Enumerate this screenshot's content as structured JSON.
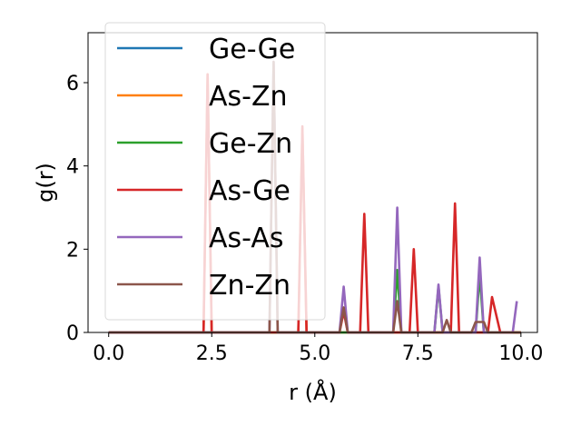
{
  "chart_data": {
    "type": "line",
    "xlabel": "r (Å)",
    "ylabel": "g(r)",
    "xlim": [
      -0.5,
      10.4
    ],
    "ylim": [
      0,
      7.2
    ],
    "xticks": [
      0.0,
      2.5,
      5.0,
      7.5,
      10.0
    ],
    "xtick_labels": [
      "0.0",
      "2.5",
      "5.0",
      "7.5",
      "10.0"
    ],
    "yticks": [
      0,
      2,
      4,
      6
    ],
    "ytick_labels": [
      "0",
      "2",
      "4",
      "6"
    ],
    "grid": false,
    "legend_position": "upper left",
    "series": [
      {
        "name": "Ge-Ge",
        "color": "#1f77b4",
        "x": [
          0,
          3.9,
          4.0,
          4.1,
          10.0
        ],
        "y": [
          0,
          0,
          0,
          0,
          0
        ]
      },
      {
        "name": "As-Zn",
        "color": "#ff7f0e",
        "x": [
          0,
          2.3,
          2.4,
          2.5,
          4.6,
          4.7,
          4.8,
          5.6,
          5.7,
          5.8,
          10.0
        ],
        "y": [
          0,
          0,
          6.2,
          0,
          0,
          4.9,
          0,
          0,
          0,
          0,
          0
        ]
      },
      {
        "name": "Ge-Zn",
        "color": "#2ca02c",
        "x": [
          0,
          6.9,
          7.0,
          7.1,
          7.9,
          8.0,
          8.1,
          8.9,
          9.0,
          9.1,
          10.0
        ],
        "y": [
          0,
          0,
          1.5,
          0,
          0,
          1.1,
          0,
          0,
          1.4,
          0,
          0
        ]
      },
      {
        "name": "As-Ge",
        "color": "#d62728",
        "x": [
          0,
          2.3,
          2.4,
          2.5,
          4.6,
          4.7,
          4.8,
          5.6,
          5.7,
          5.8,
          6.1,
          6.2,
          6.3,
          7.3,
          7.4,
          7.5,
          8.3,
          8.4,
          8.5,
          9.2,
          9.3,
          9.5,
          10.0
        ],
        "y": [
          0,
          0,
          6.2,
          0,
          0,
          4.95,
          0,
          0,
          0.5,
          0,
          0,
          2.85,
          0,
          0,
          2.0,
          0,
          0,
          3.1,
          0,
          0,
          0.85,
          0,
          0
        ]
      },
      {
        "name": "As-As",
        "color": "#9467bd",
        "x": [
          0,
          3.9,
          4.0,
          4.1,
          5.6,
          5.7,
          5.8,
          6.9,
          7.0,
          7.1,
          7.9,
          8.0,
          8.1,
          8.9,
          9.0,
          9.1,
          9.8,
          9.9
        ],
        "y": [
          0,
          0,
          6.5,
          0,
          0,
          1.1,
          0,
          0,
          3.0,
          0,
          0,
          1.15,
          0,
          0,
          1.8,
          0,
          0,
          0.75
        ]
      },
      {
        "name": "Zn-Zn",
        "color": "#8c564b",
        "x": [
          0,
          3.9,
          4.0,
          4.1,
          5.6,
          5.7,
          5.8,
          6.9,
          7.0,
          7.1,
          8.1,
          8.2,
          8.3,
          8.8,
          8.9,
          9.1,
          9.2,
          10.0
        ],
        "y": [
          0,
          0,
          6.5,
          0,
          0,
          0.6,
          0,
          0,
          0.75,
          0,
          0,
          0.3,
          0,
          0,
          0.25,
          0.25,
          0,
          0
        ]
      }
    ]
  }
}
